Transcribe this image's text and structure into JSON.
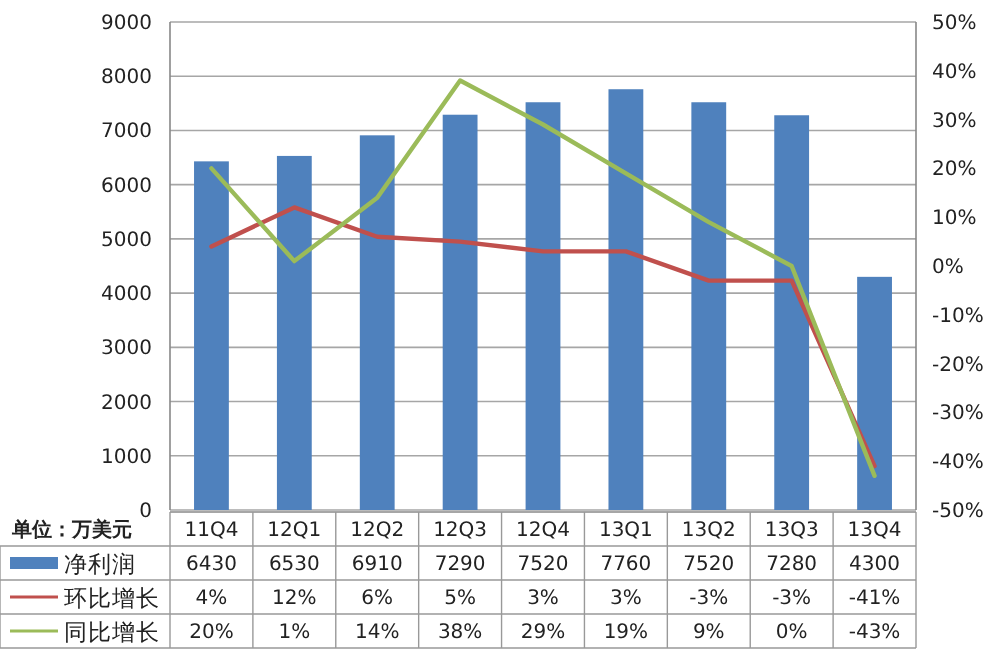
{
  "chart_data": {
    "type": "bar",
    "categories": [
      "11Q4",
      "12Q1",
      "12Q2",
      "12Q3",
      "12Q4",
      "13Q1",
      "13Q2",
      "13Q3",
      "13Q4"
    ],
    "series": [
      {
        "name": "净利润",
        "color": "#4f81bd",
        "values": [
          6430,
          6530,
          6910,
          7290,
          7520,
          7760,
          7520,
          7280,
          4300
        ],
        "value_labels": [
          "6430",
          "6530",
          "6910",
          "7290",
          "7520",
          "7760",
          "7520",
          "7280",
          "4300"
        ]
      },
      {
        "name": "环比增长",
        "type": "line",
        "axis": "y2",
        "color": "#c0504d",
        "values": [
          4,
          12,
          6,
          5,
          3,
          3,
          -3,
          -3,
          -41
        ],
        "value_labels": [
          "4%",
          "12%",
          "6%",
          "5%",
          "3%",
          "3%",
          "-3%",
          "-3%",
          "-41%"
        ]
      },
      {
        "name": "同比增长",
        "type": "line",
        "axis": "y2",
        "color": "#9bbb59",
        "values": [
          20,
          1,
          14,
          38,
          29,
          19,
          9,
          0,
          -43
        ],
        "value_labels": [
          "20%",
          "1%",
          "14%",
          "38%",
          "29%",
          "19%",
          "9%",
          "0%",
          "-43%"
        ]
      }
    ],
    "ylim": [
      0,
      9000
    ],
    "yticks": [
      0,
      1000,
      2000,
      3000,
      4000,
      5000,
      6000,
      7000,
      8000,
      9000
    ],
    "y2lim": [
      -50,
      50
    ],
    "y2ticks": [
      {
        "value": -50,
        "label": "-50%"
      },
      {
        "value": -40,
        "label": "-40%"
      },
      {
        "value": -30,
        "label": "-30%"
      },
      {
        "value": -20,
        "label": "-20%"
      },
      {
        "value": -10,
        "label": "-10%"
      },
      {
        "value": 0,
        "label": "0%"
      },
      {
        "value": 10,
        "label": "10%"
      },
      {
        "value": 20,
        "label": "20%"
      },
      {
        "value": 30,
        "label": "30%"
      },
      {
        "value": 40,
        "label": "40%"
      },
      {
        "value": 50,
        "label": "50%"
      }
    ],
    "grid": "y",
    "legend": "bottom left",
    "annotations": [
      "单位：万美元"
    ]
  }
}
